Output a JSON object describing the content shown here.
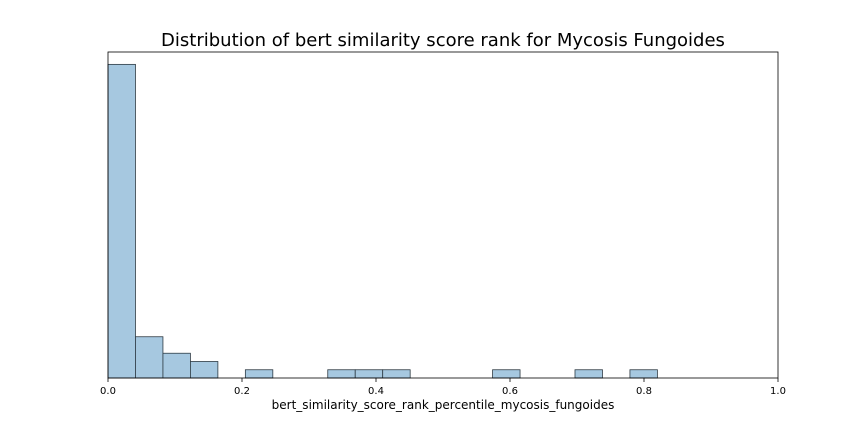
{
  "chart_data": {
    "type": "bar",
    "title": "Distribution of bert similarity score rank for Mycosis Fungoides",
    "xlabel": "bert_similarity_score_rank_percentile_mycosis_fungoides",
    "ylabel": "",
    "xlim": [
      0.0,
      1.0
    ],
    "ylim": [
      0,
      39.5
    ],
    "x_ticks": [
      "0.0",
      "0.2",
      "0.4",
      "0.6",
      "0.8",
      "1.0"
    ],
    "y_ticks_visible": false,
    "grid": false,
    "bin_edges": [
      0.0,
      0.041,
      0.082,
      0.123,
      0.164,
      0.205,
      0.246,
      0.287,
      0.328,
      0.369,
      0.41,
      0.451,
      0.492,
      0.533,
      0.574,
      0.615,
      0.656,
      0.697,
      0.738,
      0.779,
      0.82
    ],
    "values": [
      38,
      5,
      3,
      2,
      0,
      1,
      0,
      0,
      1,
      1,
      1,
      0,
      0,
      0,
      1,
      0,
      0,
      1,
      0,
      1
    ]
  }
}
